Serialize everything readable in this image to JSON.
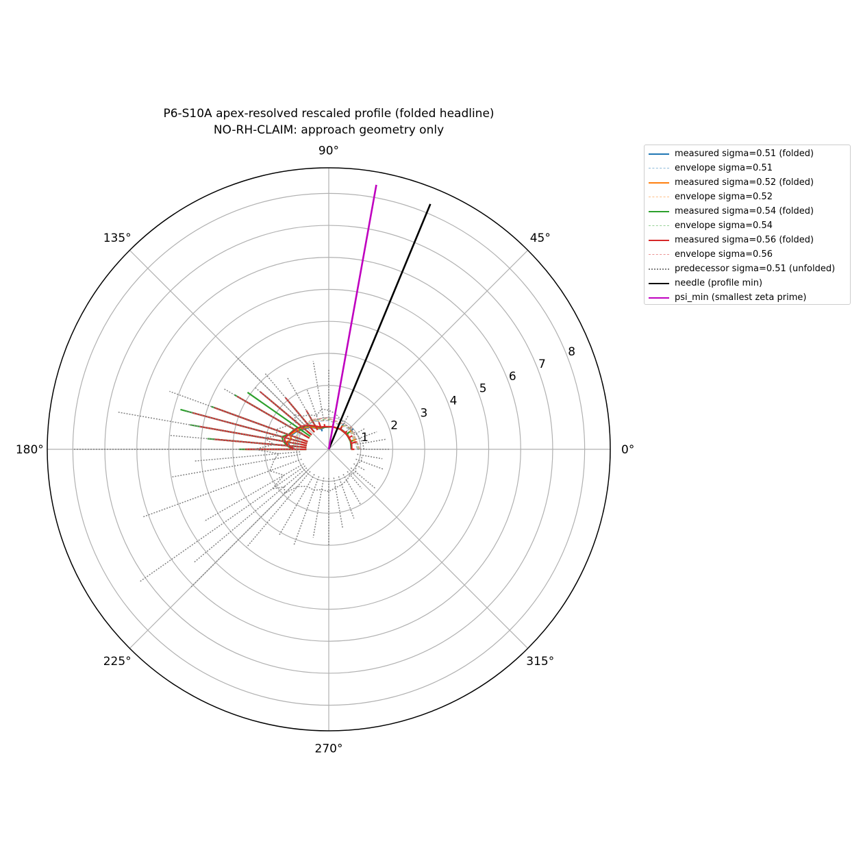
{
  "chart_data": {
    "type": "polar",
    "title": "P6-S10A apex-resolved rescaled profile (folded headline)",
    "subtitle": "NO-RH-CLAIM: approach geometry only",
    "angle_ticks": [
      "0°",
      "45°",
      "90°",
      "135°",
      "180°",
      "225°",
      "270°",
      "315°"
    ],
    "angle_tick_values_deg": [
      0,
      45,
      90,
      135,
      180,
      225,
      270,
      315
    ],
    "radial_ticks": [
      "1",
      "2",
      "3",
      "4",
      "5",
      "6",
      "7",
      "8"
    ],
    "radial_tick_values": [
      1,
      2,
      3,
      4,
      5,
      6,
      7,
      8
    ],
    "rlim": [
      0,
      8.8
    ],
    "grid": true,
    "legend_position": "outside-right",
    "series": [
      {
        "name": "measured sigma=0.51 (folded)",
        "color": "#1f77b4",
        "style": "solid",
        "theta_deg": [
          0,
          20,
          40,
          60,
          80,
          100,
          110,
          120,
          130,
          140,
          150,
          160,
          165,
          170,
          175,
          180
        ],
        "r": [
          0.7,
          0.85,
          1.0,
          0.9,
          0.75,
          0.7,
          0.6,
          1.0,
          1.7,
          2.2,
          2.9,
          3.5,
          3.3,
          3.6,
          3.4,
          2.5
        ]
      },
      {
        "name": "envelope sigma=0.51",
        "color": "#1f77b4",
        "style": "dashed",
        "theta_deg": [
          0,
          45,
          90,
          120,
          150,
          180
        ],
        "r": [
          0.9,
          0.9,
          0.9,
          1.0,
          1.05,
          1.1
        ]
      },
      {
        "name": "measured sigma=0.52 (folded)",
        "color": "#ff7f0e",
        "style": "solid",
        "theta_deg": [
          0,
          20,
          40,
          60,
          80,
          100,
          110,
          120,
          130,
          140,
          150,
          160,
          165,
          170,
          175,
          180
        ],
        "r": [
          0.8,
          0.9,
          0.95,
          0.85,
          0.8,
          0.75,
          0.7,
          1.1,
          1.8,
          2.4,
          3.0,
          3.7,
          3.2,
          3.9,
          3.5,
          2.7
        ]
      },
      {
        "name": "envelope sigma=0.52",
        "color": "#ff7f0e",
        "style": "dashed",
        "theta_deg": [
          0,
          45,
          90,
          120,
          150,
          180
        ],
        "r": [
          0.92,
          0.92,
          0.92,
          1.02,
          1.07,
          1.12
        ]
      },
      {
        "name": "measured sigma=0.54 (folded)",
        "color": "#2ca02c",
        "style": "solid",
        "theta_deg": [
          0,
          20,
          40,
          60,
          80,
          100,
          110,
          120,
          130,
          140,
          145,
          150,
          160,
          165,
          170,
          175,
          180
        ],
        "r": [
          0.75,
          0.8,
          0.85,
          0.8,
          0.78,
          0.72,
          0.8,
          1.3,
          2.0,
          2.6,
          3.1,
          3.4,
          3.9,
          4.8,
          4.4,
          3.8,
          2.8
        ]
      },
      {
        "name": "envelope sigma=0.54",
        "color": "#2ca02c",
        "style": "dashed",
        "theta_deg": [
          0,
          45,
          90,
          120,
          150,
          180
        ],
        "r": [
          0.95,
          0.95,
          0.95,
          1.05,
          1.1,
          1.15
        ]
      },
      {
        "name": "measured sigma=0.56 (folded)",
        "color": "#d62728",
        "style": "solid",
        "theta_deg": [
          0,
          15,
          30,
          45,
          60,
          80,
          100,
          110,
          120,
          130,
          140,
          150,
          160,
          165,
          170,
          175,
          180
        ],
        "r": [
          0.8,
          0.9,
          0.85,
          0.8,
          0.82,
          0.78,
          0.8,
          0.9,
          1.4,
          2.1,
          2.8,
          3.3,
          3.8,
          4.4,
          4.1,
          3.6,
          2.6
        ]
      },
      {
        "name": "envelope sigma=0.56",
        "color": "#d62728",
        "style": "dashed",
        "theta_deg": [
          0,
          45,
          90,
          120,
          150,
          180
        ],
        "r": [
          0.98,
          0.98,
          0.98,
          1.08,
          1.12,
          1.18
        ]
      },
      {
        "name": "predecessor sigma=0.51 (unfolded)",
        "color": "#808080",
        "style": "dotted",
        "theta_deg": [
          0,
          10,
          20,
          30,
          40,
          60,
          80,
          90,
          100,
          110,
          120,
          130,
          135,
          140,
          150,
          160,
          165,
          170,
          175,
          180,
          185,
          190,
          200,
          210,
          215,
          220,
          225,
          230,
          240,
          250,
          260,
          270,
          280,
          290,
          300,
          310,
          320,
          330,
          340,
          350
        ],
        "r": [
          1.9,
          1.8,
          1.6,
          1.3,
          1.0,
          1.2,
          2.1,
          2.5,
          2.8,
          2.0,
          2.6,
          3.1,
          4.1,
          3.0,
          3.8,
          5.3,
          4.6,
          6.7,
          5.0,
          8.0,
          4.2,
          5.0,
          6.2,
          4.5,
          7.2,
          5.5,
          6.1,
          4.0,
          3.1,
          3.2,
          2.8,
          3.0,
          2.5,
          2.3,
          2.0,
          1.6,
          1.9,
          1.3,
          1.8,
          1.7
        ]
      },
      {
        "name": "needle (profile min)",
        "color": "#000000",
        "style": "solid-thick",
        "theta_deg": [
          67.5,
          67.5
        ],
        "r": [
          0,
          8.3
        ]
      },
      {
        "name": "psi_min (smallest zeta prime)",
        "color": "#bf00bf",
        "style": "solid-thick",
        "theta_deg": [
          79.8,
          79.8
        ],
        "r": [
          0,
          8.4
        ]
      }
    ]
  }
}
